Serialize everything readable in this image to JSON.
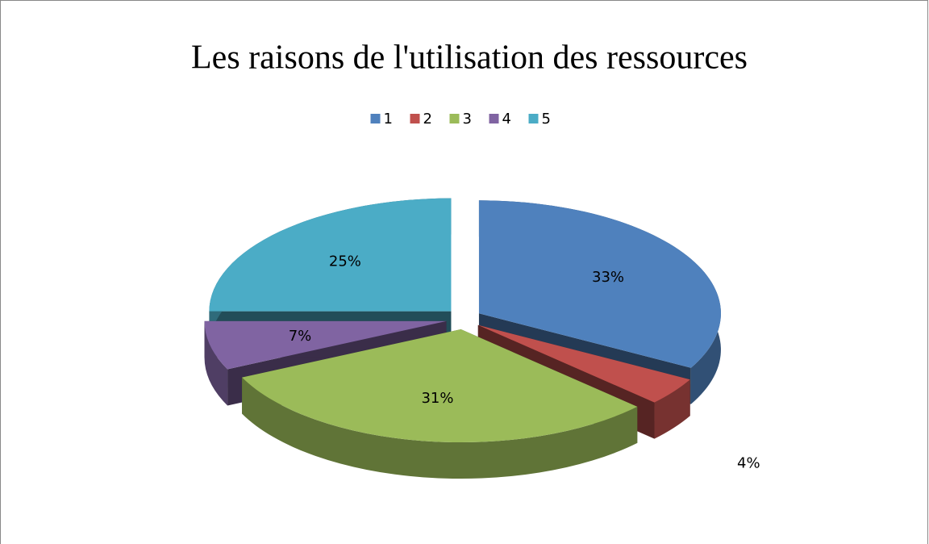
{
  "chart_data": {
    "type": "pie",
    "title": "Les raisons de l'utilisation des ressources",
    "categories": [
      "1",
      "2",
      "3",
      "4",
      "5"
    ],
    "values": [
      33,
      4,
      31,
      7,
      25
    ],
    "value_labels": [
      "33%",
      "4%",
      "31%",
      "7%",
      "25%"
    ],
    "colors": [
      "#4f81bd",
      "#c0504d",
      "#9bbb59",
      "#8064a2",
      "#4bacc6"
    ],
    "legend": "top"
  }
}
